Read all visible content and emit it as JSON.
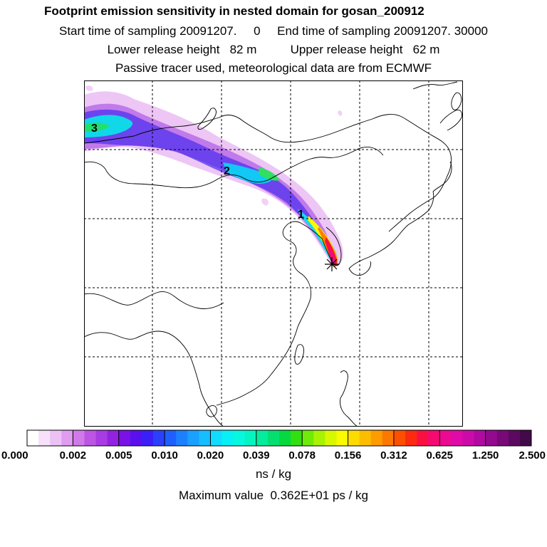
{
  "header": {
    "title": "Footprint emission sensitivity in nested domain for gosan_200912",
    "sampling_line": "Start time of sampling 20091207.     0     End time of sampling 20091207. 30000",
    "release_line": "Lower release height   82 m          Upper release height   62 m",
    "tracer_line": "Passive tracer used, meteorological data are from ECMWF"
  },
  "map": {
    "labels": [
      "1",
      "2",
      "3"
    ],
    "receptor_marker": "star-icon"
  },
  "colorbar": {
    "tick_labels": [
      "0.000",
      "0.002",
      "0.005",
      "0.010",
      "0.020",
      "0.039",
      "0.078",
      "0.156",
      "0.312",
      "0.625",
      "1.250",
      "2.500"
    ],
    "colors": [
      "#ffffff",
      "#f6e0fa",
      "#ecc2f5",
      "#e09df0",
      "#d07aea",
      "#bd55e4",
      "#a93be2",
      "#9222e0",
      "#7a12e6",
      "#5a10ee",
      "#3a20f6",
      "#2a40fb",
      "#1e60ff",
      "#1c80ff",
      "#1aa0ff",
      "#16bdff",
      "#10dcff",
      "#08f0f6",
      "#06f8de",
      "#06f4c0",
      "#04ec9c",
      "#04e070",
      "#06d840",
      "#30e010",
      "#70ea08",
      "#a8f204",
      "#d8f800",
      "#fafa00",
      "#fcdc00",
      "#fcbc00",
      "#fc9c00",
      "#fc7800",
      "#fc5000",
      "#fc2a10",
      "#fa1040",
      "#f40a70",
      "#ec0a90",
      "#e00aa8",
      "#cc0aa8",
      "#b00aa0",
      "#940a8e",
      "#780a78",
      "#5c0a60",
      "#420a48"
    ],
    "units": "ns / kg",
    "max_value_text": "Maximum value  0.362E+01 ps / kg"
  }
}
